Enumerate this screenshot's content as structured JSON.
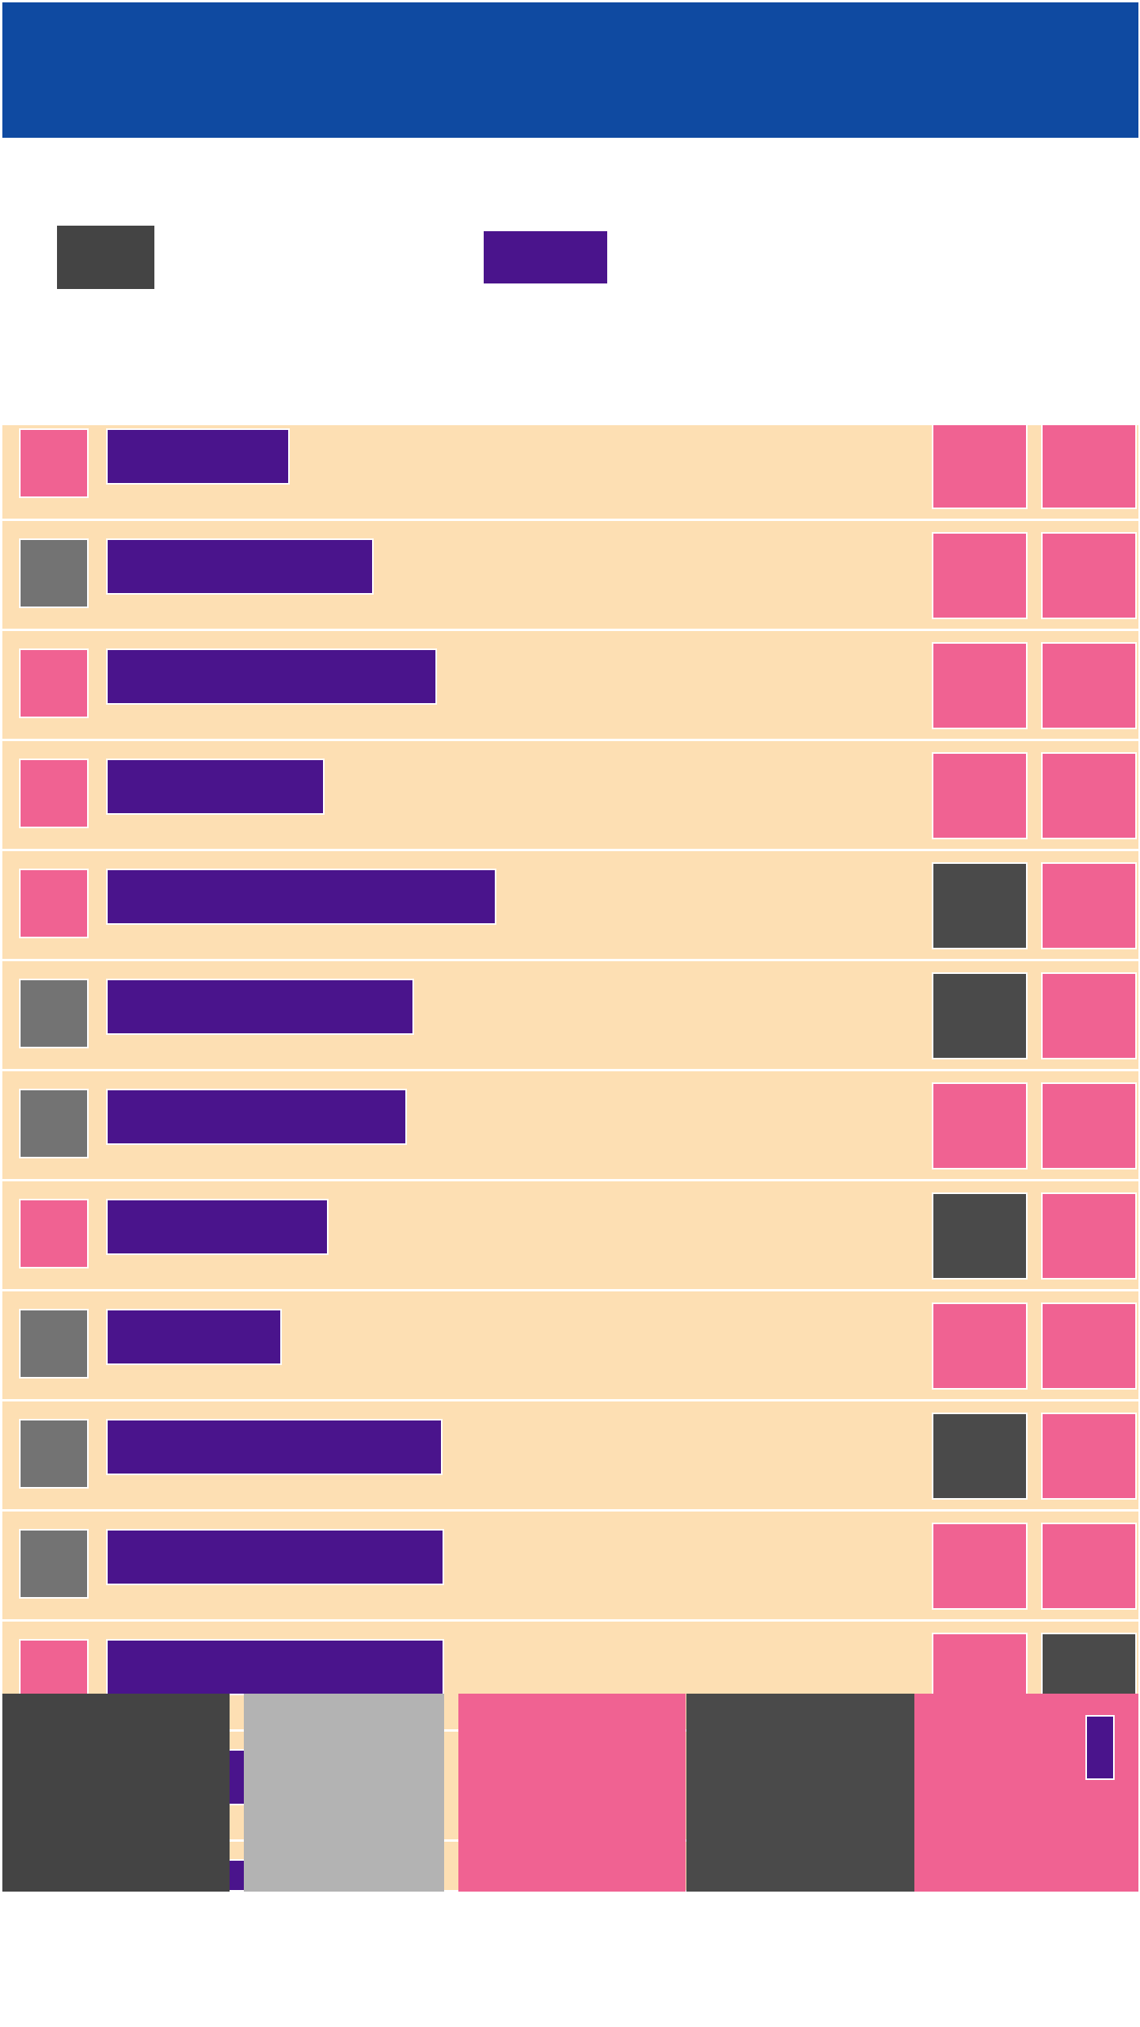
{
  "colors": {
    "header": "#0f4aa1",
    "row_bg": "#fddfb3",
    "accent_purple": "#4a148c",
    "pink": "#f06292",
    "dark": "#4a4a4a",
    "gray": "#737373",
    "light_gray": "#b3b3b3"
  },
  "filters": {
    "button_a_color": "#444444",
    "button_b_color": "#4a148c"
  },
  "list": {
    "rows": [
      {
        "check": "pink",
        "label_fill": 0.2223,
        "btn1": "pink",
        "btn2": "pink"
      },
      {
        "check": "gray",
        "label_fill": 0.324,
        "btn1": "pink",
        "btn2": "pink"
      },
      {
        "check": "pink",
        "label_fill": 0.4009,
        "btn1": "pink",
        "btn2": "pink"
      },
      {
        "check": "pink",
        "label_fill": 0.2647,
        "btn1": "pink",
        "btn2": "pink"
      },
      {
        "check": "pink",
        "label_fill": 0.4727,
        "btn1": "dark",
        "btn2": "pink"
      },
      {
        "check": "gray",
        "label_fill": 0.3728,
        "btn1": "dark",
        "btn2": "pink"
      },
      {
        "check": "gray",
        "label_fill": 0.3646,
        "btn1": "pink",
        "btn2": "pink"
      },
      {
        "check": "pink",
        "label_fill": 0.2696,
        "btn1": "dark",
        "btn2": "pink"
      },
      {
        "check": "gray",
        "label_fill": 0.2125,
        "btn1": "pink",
        "btn2": "pink"
      },
      {
        "check": "gray",
        "label_fill": 0.4074,
        "btn1": "dark",
        "btn2": "pink"
      },
      {
        "check": "gray",
        "label_fill": 0.409,
        "btn1": "pink",
        "btn2": "pink"
      },
      {
        "check": "pink",
        "label_fill": 0.409,
        "btn1": "pink",
        "btn2": "dark"
      },
      {
        "check": "gray",
        "label_fill": 0.409,
        "btn1": "pink",
        "btn2": "pink"
      },
      {
        "check": "gray",
        "label_fill": 0.409,
        "btn1": "pink",
        "btn2": "pink"
      }
    ]
  },
  "bottom_nav": {
    "tabs": [
      {
        "color": "#444444"
      },
      {
        "color": "#b3b3b3"
      },
      {
        "color": "#f06292"
      },
      {
        "color": "#4a4a4a"
      },
      {
        "color": "#f06292"
      }
    ]
  }
}
